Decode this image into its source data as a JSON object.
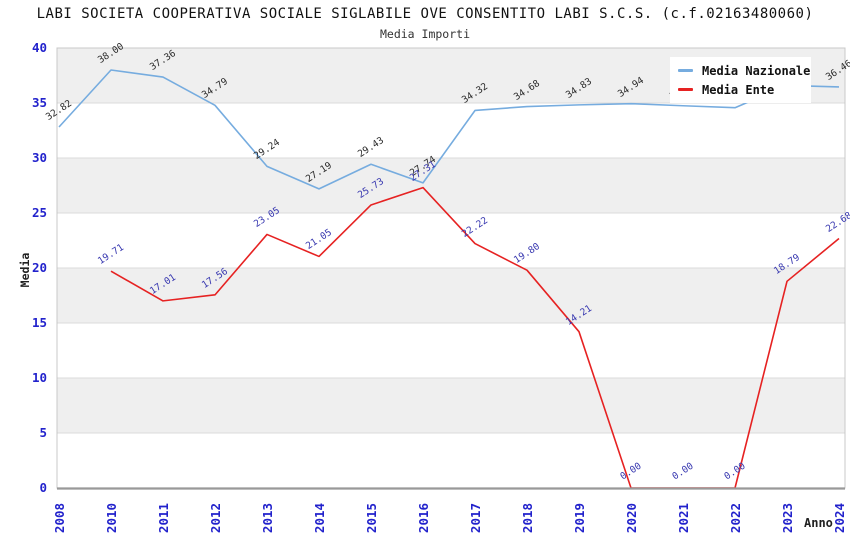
{
  "header": {
    "title": "LABI SOCIETA COOPERATIVA SOCIALE SIGLABILE OVE CONSENTITO LABI S.C.S. (c.f.02163480060)",
    "subtitle": "Media Importi"
  },
  "chart_data": {
    "type": "line",
    "title": "LABI SOCIETA COOPERATIVA SOCIALE SIGLABILE OVE CONSENTITO LABI S.C.S. (c.f.02163480060)",
    "subtitle": "Media Importi",
    "xlabel": "Anno",
    "ylabel": "Media",
    "ylim": [
      0,
      40
    ],
    "yticks": [
      0,
      5,
      10,
      15,
      20,
      25,
      30,
      35,
      40
    ],
    "grid": "horizontal-bands",
    "legend_position": "top-right",
    "categories": [
      "2008",
      "2010",
      "2011",
      "2012",
      "2013",
      "2014",
      "2015",
      "2016",
      "2017",
      "2018",
      "2019",
      "2020",
      "2021",
      "2022",
      "2023",
      "2024"
    ],
    "series": [
      {
        "name": "Media Nazionale",
        "color": "#76ACDF",
        "label_color": "#2a2a2a",
        "values": [
          32.82,
          38.0,
          37.36,
          34.79,
          29.24,
          27.19,
          29.43,
          27.74,
          34.32,
          34.68,
          34.83,
          34.94,
          34.75,
          34.57,
          36.6,
          36.46
        ]
      },
      {
        "name": "Media Ente",
        "color": "#E62222",
        "label_color": "#3838B0",
        "values": [
          null,
          19.71,
          17.01,
          17.56,
          23.05,
          21.05,
          25.73,
          27.31,
          22.22,
          19.8,
          14.21,
          0.0,
          0.0,
          0.0,
          18.79,
          22.68
        ]
      }
    ]
  },
  "colors": {
    "band_gray": "#EFEFEF",
    "gridline": "#DBDBDB",
    "plot_border": "#C8C8C8",
    "axis_line": "#999999",
    "tick_label": "#2222CC"
  }
}
